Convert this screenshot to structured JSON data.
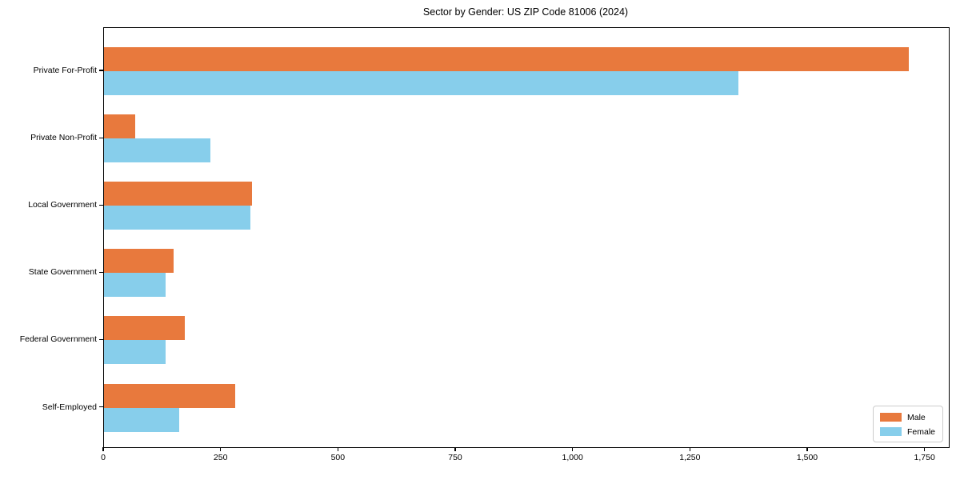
{
  "chart_data": {
    "type": "bar",
    "orientation": "horizontal",
    "title": "Sector by Gender: US ZIP Code 81006 (2024)",
    "categories": [
      "Private For-Profit",
      "Private Non-Profit",
      "Local Government",
      "State Government",
      "Federal Government",
      "Self-Employed"
    ],
    "series": [
      {
        "name": "Male",
        "color": "#E8793D",
        "values": [
          1715,
          67,
          316,
          148,
          172,
          279
        ]
      },
      {
        "name": "Female",
        "color": "#87CEEB",
        "values": [
          1352,
          226,
          312,
          132,
          132,
          161
        ]
      }
    ],
    "xlim": [
      0,
      1800
    ],
    "xticks": [
      0,
      250,
      500,
      750,
      1000,
      1250,
      1500,
      1750
    ],
    "xtick_labels": [
      "0",
      "250",
      "500",
      "750",
      "1,000",
      "1,250",
      "1,500",
      "1,750"
    ],
    "ylabel": "",
    "xlabel": "",
    "grid": false,
    "legend_position": "lower right",
    "colors": {
      "spine": "#000000",
      "text": "#000000",
      "legend_border": "#cccccc",
      "background": "#ffffff"
    }
  }
}
